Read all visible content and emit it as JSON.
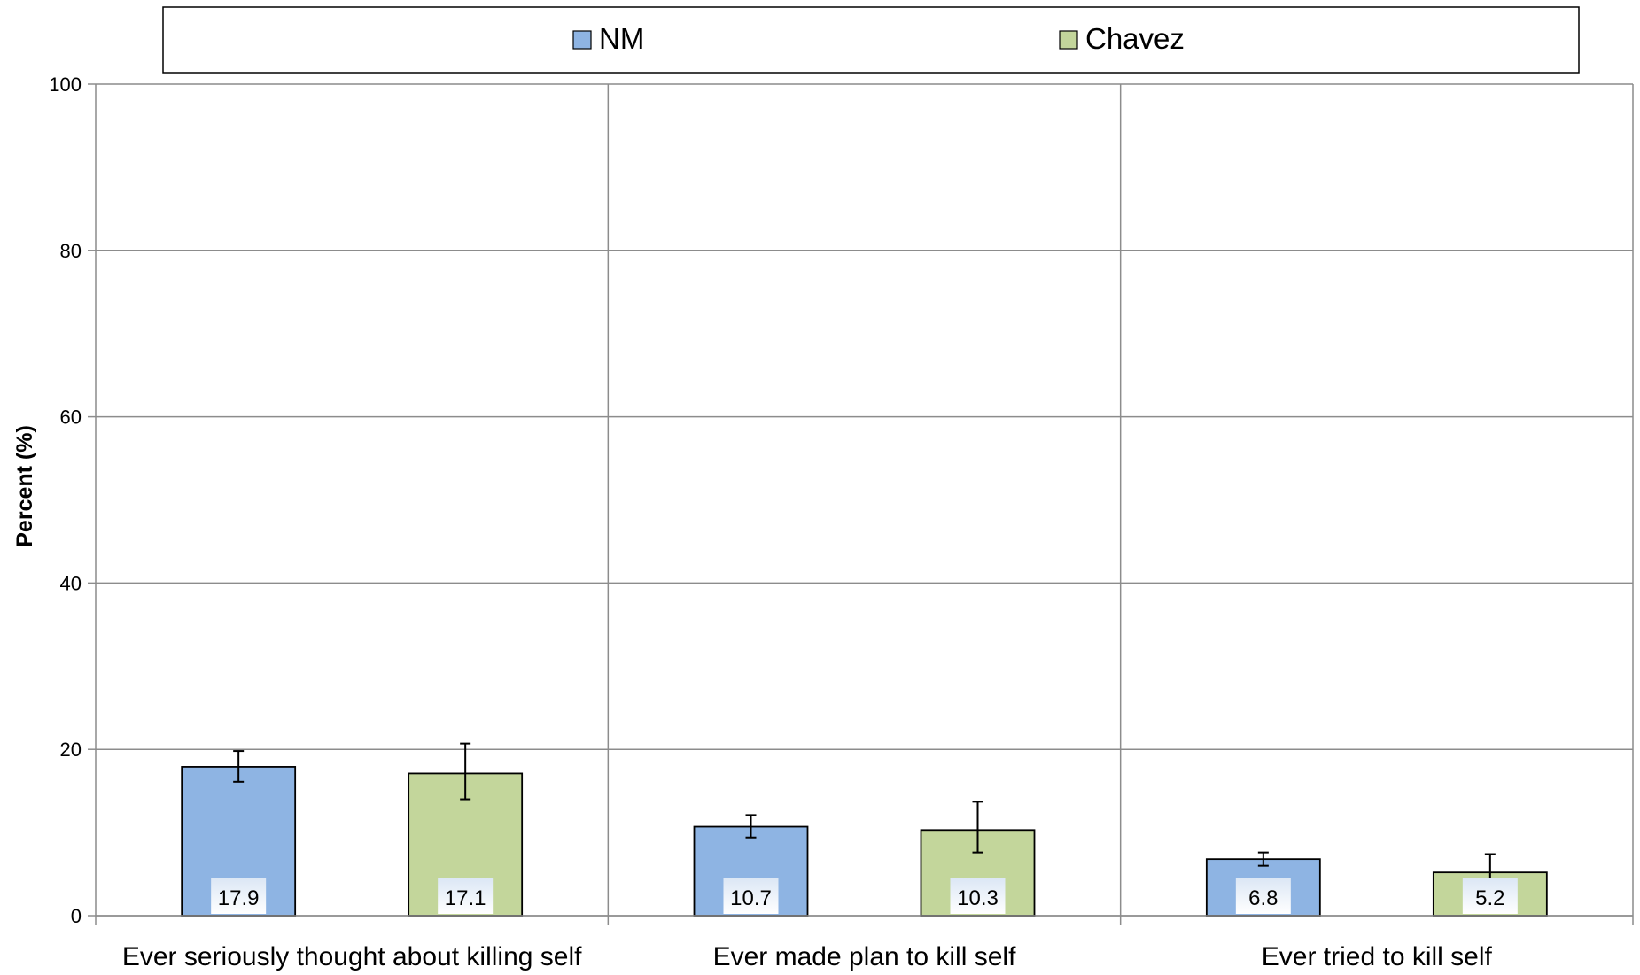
{
  "chart_data": {
    "type": "bar",
    "categories": [
      "Ever seriously thought about killing self",
      "Ever made plan to kill self",
      "Ever tried to kill self"
    ],
    "series": [
      {
        "name": "NM",
        "color": "#8eb4e3",
        "values": [
          17.9,
          10.7,
          6.8
        ],
        "error_low": [
          16.1,
          9.4,
          6.0
        ],
        "error_high": [
          19.8,
          12.1,
          7.6
        ]
      },
      {
        "name": "Chavez",
        "color": "#c3d69b",
        "values": [
          17.1,
          10.3,
          5.2
        ],
        "error_low": [
          14.0,
          7.6,
          3.5
        ],
        "error_high": [
          20.7,
          13.7,
          7.4
        ]
      }
    ],
    "data_labels": [
      [
        "17.9",
        "10.7",
        "6.8"
      ],
      [
        "17.1",
        "10.3",
        "5.2"
      ]
    ],
    "ylabel": "Percent (%)",
    "xlabel": "",
    "ylim": [
      0,
      100
    ],
    "yticks": [
      "0",
      "20",
      "40",
      "60",
      "80",
      "100"
    ],
    "grid": true,
    "legend_position": "top"
  }
}
